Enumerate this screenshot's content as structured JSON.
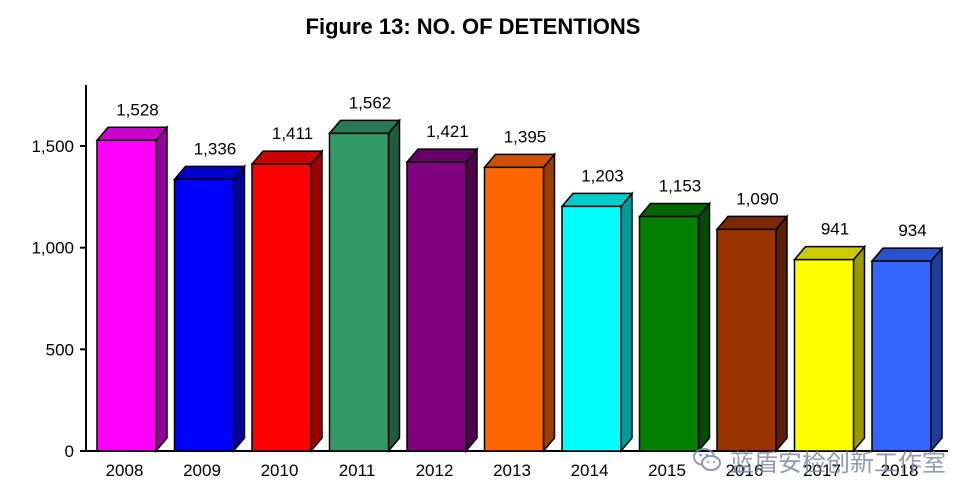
{
  "chart_data": {
    "type": "bar",
    "title": "Figure 13: NO. OF DETENTIONS",
    "xlabel": "",
    "ylabel": "",
    "categories": [
      "2008",
      "2009",
      "2010",
      "2011",
      "2012",
      "2013",
      "2014",
      "2015",
      "2016",
      "2017",
      "2018"
    ],
    "values": [
      1528,
      1336,
      1411,
      1562,
      1421,
      1395,
      1203,
      1153,
      1090,
      941,
      934
    ],
    "value_labels": [
      "1,528",
      "1,336",
      "1,411",
      "1,562",
      "1,421",
      "1,395",
      "1,203",
      "1,153",
      "1,090",
      "941",
      "934"
    ],
    "bar_colors": [
      "#ff00ff",
      "#0000ff",
      "#ff0000",
      "#339966",
      "#800080",
      "#ff6600",
      "#00ffff",
      "#008000",
      "#993300",
      "#ffff00",
      "#3366ff"
    ],
    "ylim": [
      0,
      1800
    ],
    "y_ticks": [
      0,
      500,
      1000,
      1500
    ],
    "y_tick_labels": [
      "0",
      "500",
      "1,000",
      "1,500"
    ],
    "grid": false,
    "legend": "none",
    "style": "3d-bars"
  },
  "watermark": {
    "text": "蓝盾安检创新工作室",
    "icon": "wechat-icon"
  }
}
